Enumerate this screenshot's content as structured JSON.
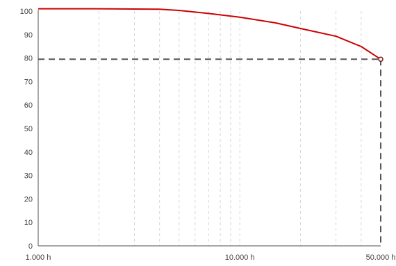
{
  "chart_data": {
    "type": "line",
    "x_scale": "log",
    "xlim": [
      1000,
      50000
    ],
    "ylim": [
      0,
      100
    ],
    "x_ticks": [
      {
        "value": 1000,
        "label": "1.000 h"
      },
      {
        "value": 10000,
        "label": "10.000 h"
      },
      {
        "value": 50000,
        "label": "50.000 h"
      }
    ],
    "y_ticks": [
      0,
      10,
      20,
      30,
      40,
      50,
      60,
      70,
      80,
      90,
      100
    ],
    "minor_x_gridlines": [
      2000,
      3000,
      4000,
      5000,
      6000,
      7000,
      8000,
      9000,
      20000,
      30000,
      40000
    ],
    "grid": "vertical dashed",
    "series": [
      {
        "color": "#cc0000",
        "x": [
          1000,
          2000,
          3000,
          4000,
          5000,
          7000,
          10000,
          15000,
          20000,
          30000,
          40000,
          50000
        ],
        "y": [
          101,
          101,
          100.9,
          100.8,
          100.3,
          99,
          97.4,
          95,
          92.6,
          89.3,
          84.9,
          79.5
        ]
      }
    ],
    "reference_point": {
      "x": 50000,
      "y": 79.5
    },
    "reference_line_color": "#555555",
    "axis_color": "#888888",
    "grid_color": "#d6d6d6",
    "tick_label_color": "#404040"
  }
}
